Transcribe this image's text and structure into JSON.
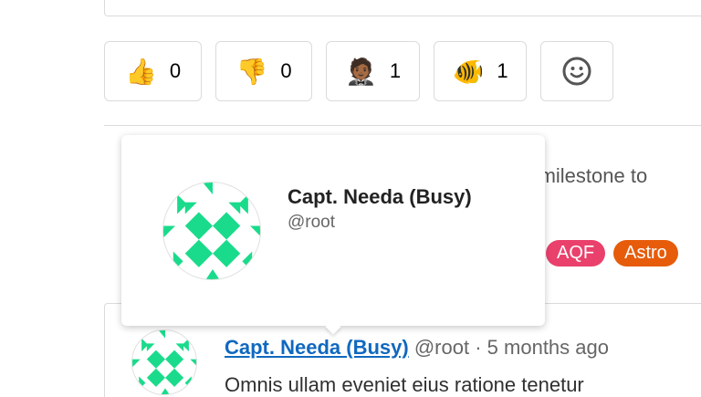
{
  "reactions": [
    {
      "emoji": "👍",
      "icon": "thumbs-up-icon",
      "count": "0"
    },
    {
      "emoji": "👎",
      "icon": "thumbs-down-icon",
      "count": "0"
    },
    {
      "emoji": "🤵🏾",
      "icon": "man-in-tuxedo-icon",
      "count": "1"
    },
    {
      "emoji": "🐠",
      "icon": "tropical-fish-icon",
      "count": "1"
    }
  ],
  "add_reaction_icon": "smiley-icon",
  "activity": {
    "text": "ed milestone to"
  },
  "labels": [
    {
      "text": "AQF",
      "color": "#e9416c"
    },
    {
      "text": "Astro",
      "color": "#e65c0a"
    }
  ],
  "popover": {
    "name": "Capt. Needa (Busy)",
    "username": "@root"
  },
  "comment": {
    "author": "Capt. Needa (Busy)",
    "username": "@root",
    "separator": "·",
    "time": "5 months ago",
    "body": "Omnis ullam eveniet eius ratione tenetur"
  },
  "colors": {
    "identicon": "#1adb8b",
    "link": "#1068bf"
  }
}
